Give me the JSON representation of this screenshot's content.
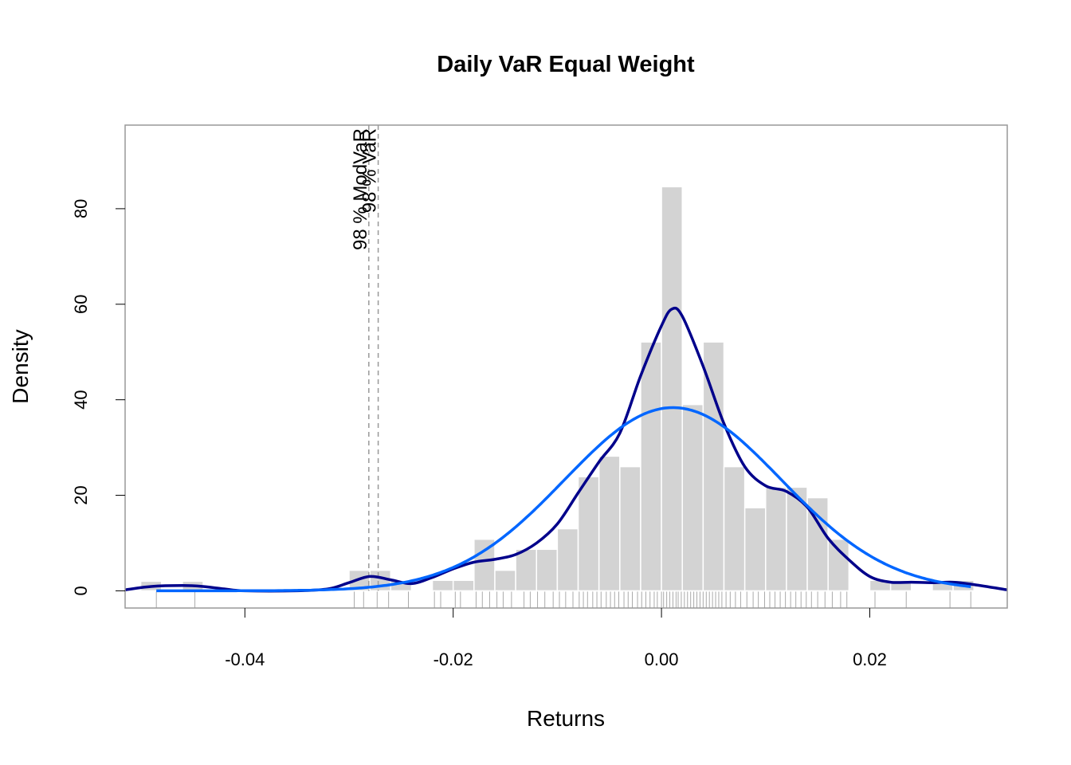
{
  "chart_data": {
    "type": "bar",
    "title": "Daily VaR Equal Weight",
    "xlabel": "Returns",
    "ylabel": "Density",
    "xlim": [
      -0.0515,
      0.0332
    ],
    "ylim": [
      -3.6,
      97.5
    ],
    "x_ticks": [
      -0.04,
      -0.02,
      0.0,
      0.02
    ],
    "x_tick_labels": [
      "-0.04",
      "-0.02",
      "0.00",
      "0.02"
    ],
    "y_ticks": [
      0,
      20,
      40,
      60,
      80
    ],
    "y_tick_labels": [
      "0",
      "20",
      "40",
      "60",
      "80"
    ],
    "grid": false,
    "colors": {
      "bars": "#d3d3d3",
      "kernel_density": "#00008b",
      "normal_density": "#0066ff",
      "var_lines": "#999999",
      "rug": "#aaaaaa",
      "frame": "#999999"
    },
    "histogram": {
      "bin_width": 0.002,
      "bins": [
        {
          "x0": -0.05,
          "x1": -0.048,
          "density": 2
        },
        {
          "x0": -0.046,
          "x1": -0.044,
          "density": 2
        },
        {
          "x0": -0.03,
          "x1": -0.028,
          "density": 4.3
        },
        {
          "x0": -0.028,
          "x1": -0.026,
          "density": 4.3
        },
        {
          "x0": -0.026,
          "x1": -0.024,
          "density": 2.2
        },
        {
          "x0": -0.022,
          "x1": -0.02,
          "density": 2.2
        },
        {
          "x0": -0.02,
          "x1": -0.018,
          "density": 2.2
        },
        {
          "x0": -0.018,
          "x1": -0.016,
          "density": 10.8
        },
        {
          "x0": -0.016,
          "x1": -0.014,
          "density": 4.3
        },
        {
          "x0": -0.014,
          "x1": -0.012,
          "density": 8.7
        },
        {
          "x0": -0.012,
          "x1": -0.01,
          "density": 8.7
        },
        {
          "x0": -0.01,
          "x1": -0.008,
          "density": 13
        },
        {
          "x0": -0.008,
          "x1": -0.006,
          "density": 23.9
        },
        {
          "x0": -0.006,
          "x1": -0.004,
          "density": 28.2
        },
        {
          "x0": -0.004,
          "x1": -0.002,
          "density": 26
        },
        {
          "x0": -0.002,
          "x1": 0.0,
          "density": 52.1
        },
        {
          "x0": 0.0,
          "x1": 0.002,
          "density": 84.6
        },
        {
          "x0": 0.002,
          "x1": 0.004,
          "density": 39
        },
        {
          "x0": 0.004,
          "x1": 0.006,
          "density": 52.1
        },
        {
          "x0": 0.006,
          "x1": 0.008,
          "density": 26
        },
        {
          "x0": 0.008,
          "x1": 0.01,
          "density": 17.4
        },
        {
          "x0": 0.01,
          "x1": 0.012,
          "density": 21.7
        },
        {
          "x0": 0.012,
          "x1": 0.014,
          "density": 21.7
        },
        {
          "x0": 0.014,
          "x1": 0.016,
          "density": 19.5
        },
        {
          "x0": 0.016,
          "x1": 0.018,
          "density": 10.8
        },
        {
          "x0": 0.02,
          "x1": 0.022,
          "density": 2.2
        },
        {
          "x0": 0.022,
          "x1": 0.024,
          "density": 2.2
        },
        {
          "x0": 0.026,
          "x1": 0.028,
          "density": 2.2
        },
        {
          "x0": 0.028,
          "x1": 0.03,
          "density": 2.2
        }
      ]
    },
    "series": [
      {
        "kind": "kernel_density",
        "points": [
          [
            -0.0515,
            0.2
          ],
          [
            -0.049,
            0.9
          ],
          [
            -0.046,
            1.1
          ],
          [
            -0.044,
            0.9
          ],
          [
            -0.042,
            0.4
          ],
          [
            -0.04,
            0.0
          ],
          [
            -0.035,
            0.0
          ],
          [
            -0.032,
            0.4
          ],
          [
            -0.03,
            1.7
          ],
          [
            -0.028,
            3.0
          ],
          [
            -0.026,
            2.3
          ],
          [
            -0.024,
            1.5
          ],
          [
            -0.022,
            2.8
          ],
          [
            -0.02,
            4.6
          ],
          [
            -0.018,
            6.0
          ],
          [
            -0.016,
            6.6
          ],
          [
            -0.014,
            7.6
          ],
          [
            -0.012,
            10.0
          ],
          [
            -0.01,
            14.0
          ],
          [
            -0.008,
            20.5
          ],
          [
            -0.006,
            27.0
          ],
          [
            -0.004,
            33.0
          ],
          [
            -0.002,
            45.0
          ],
          [
            0.0,
            55.5
          ],
          [
            0.001,
            59.0
          ],
          [
            0.002,
            57.5
          ],
          [
            0.004,
            47.0
          ],
          [
            0.006,
            35.0
          ],
          [
            0.008,
            26.0
          ],
          [
            0.01,
            22.0
          ],
          [
            0.012,
            20.8
          ],
          [
            0.014,
            17.5
          ],
          [
            0.016,
            11.0
          ],
          [
            0.018,
            6.5
          ],
          [
            0.02,
            3.0
          ],
          [
            0.022,
            1.8
          ],
          [
            0.024,
            1.8
          ],
          [
            0.026,
            1.7
          ],
          [
            0.028,
            1.8
          ],
          [
            0.03,
            1.3
          ],
          [
            0.0332,
            0.2
          ]
        ]
      },
      {
        "kind": "normal_density",
        "mean": 0.0011,
        "sd": 0.0104,
        "x_range": [
          -0.0485,
          0.0297
        ]
      }
    ],
    "var_lines": [
      {
        "label": "98 % ModVaR",
        "x": -0.0281
      },
      {
        "label": "98 % VaR",
        "x": -0.0272
      }
    ],
    "rug": [
      -0.0485,
      -0.0448,
      -0.0295,
      -0.0286,
      -0.0273,
      -0.0262,
      -0.0243,
      -0.0218,
      -0.0212,
      -0.0198,
      -0.0193,
      -0.0178,
      -0.0172,
      -0.0165,
      -0.0158,
      -0.0152,
      -0.0144,
      -0.0132,
      -0.0126,
      -0.0119,
      -0.0112,
      -0.0104,
      -0.0098,
      -0.0092,
      -0.0085,
      -0.0079,
      -0.0075,
      -0.0071,
      -0.0066,
      -0.0062,
      -0.0058,
      -0.0053,
      -0.0049,
      -0.0045,
      -0.0041,
      -0.0036,
      -0.0032,
      -0.0028,
      -0.0023,
      -0.0019,
      -0.0015,
      -0.0011,
      -0.0007,
      -0.0004,
      0.0,
      0.0002,
      0.0005,
      0.0008,
      0.0011,
      0.0014,
      0.0016,
      0.0019,
      0.0022,
      0.0025,
      0.0028,
      0.0031,
      0.0034,
      0.0037,
      0.004,
      0.0043,
      0.0046,
      0.0049,
      0.0052,
      0.0055,
      0.0058,
      0.0062,
      0.0066,
      0.0071,
      0.0076,
      0.0082,
      0.0088,
      0.0093,
      0.0099,
      0.0104,
      0.0109,
      0.0114,
      0.0119,
      0.0124,
      0.0129,
      0.0134,
      0.0139,
      0.0144,
      0.015,
      0.0157,
      0.0164,
      0.0172,
      0.0178,
      0.0205,
      0.0235,
      0.0277,
      0.0297
    ]
  }
}
